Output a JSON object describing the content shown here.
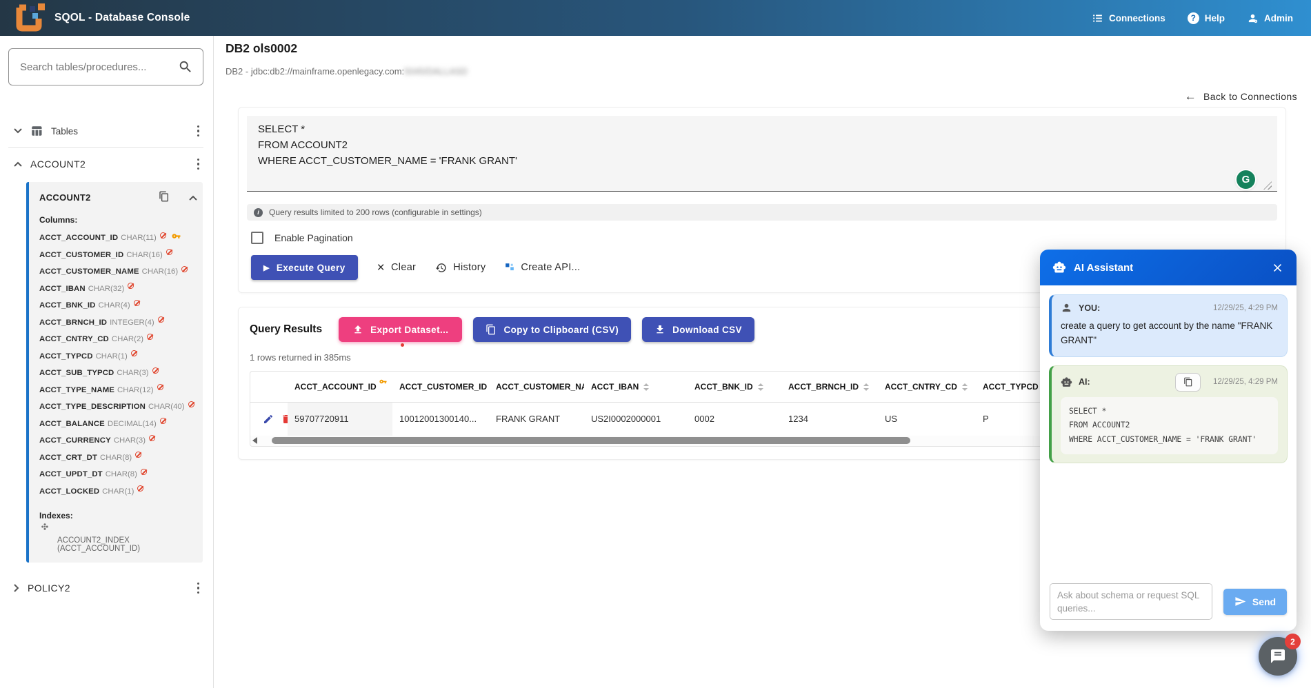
{
  "app": {
    "title": "SQOL - Database Console"
  },
  "header": {
    "connections": "Connections",
    "help": "Help",
    "admin": "Admin"
  },
  "icons": {
    "play": "▶",
    "clear": "×",
    "back_arrow": "←",
    "help": "?",
    "info": "i",
    "grammarly": "G"
  },
  "colors": {
    "header_gradient_left": "#243746",
    "header_gradient_right": "#2f8fd0",
    "accent_indigo": "#3f51b5",
    "accent_pink": "#ee3f7f",
    "assistant_blue": "#0c5fd6",
    "user_bubble": "#dceafc",
    "ai_bubble": "#edf2e2",
    "not_null_red": "#e0442c",
    "key_orange": "#f29b00",
    "send_blue": "#6aabf1",
    "sidebar_card_border": "#1a73c8"
  },
  "sidebar": {
    "search_placeholder": "Search tables/procedures...",
    "tables_label": "Tables",
    "tree": [
      {
        "label": "ACCOUNT2",
        "expanded": true
      },
      {
        "label": "POLICY2",
        "expanded": false
      }
    ],
    "table_detail": {
      "title": "ACCOUNT2",
      "columns_label": "Columns:",
      "columns": [
        {
          "name": "ACCT_ACCOUNT_ID",
          "type": "CHAR(11)",
          "no_nulls": true,
          "primary_key": true
        },
        {
          "name": "ACCT_CUSTOMER_ID",
          "type": "CHAR(16)",
          "no_nulls": true,
          "primary_key": false
        },
        {
          "name": "ACCT_CUSTOMER_NAME",
          "type": "CHAR(16)",
          "no_nulls": true,
          "primary_key": false
        },
        {
          "name": "ACCT_IBAN",
          "type": "CHAR(32)",
          "no_nulls": true,
          "primary_key": false
        },
        {
          "name": "ACCT_BNK_ID",
          "type": "CHAR(4)",
          "no_nulls": true,
          "primary_key": false
        },
        {
          "name": "ACCT_BRNCH_ID",
          "type": "INTEGER(4)",
          "no_nulls": true,
          "primary_key": false
        },
        {
          "name": "ACCT_CNTRY_CD",
          "type": "CHAR(2)",
          "no_nulls": true,
          "primary_key": false
        },
        {
          "name": "ACCT_TYPCD",
          "type": "CHAR(1)",
          "no_nulls": true,
          "primary_key": false
        },
        {
          "name": "ACCT_SUB_TYPCD",
          "type": "CHAR(3)",
          "no_nulls": true,
          "primary_key": false
        },
        {
          "name": "ACCT_TYPE_NAME",
          "type": "CHAR(12)",
          "no_nulls": true,
          "primary_key": false
        },
        {
          "name": "ACCT_TYPE_DESCRIPTION",
          "type": "CHAR(40)",
          "no_nulls": true,
          "primary_key": false
        },
        {
          "name": "ACCT_BALANCE",
          "type": "DECIMAL(14)",
          "no_nulls": true,
          "primary_key": false
        },
        {
          "name": "ACCT_CURRENCY",
          "type": "CHAR(3)",
          "no_nulls": true,
          "primary_key": false
        },
        {
          "name": "ACCT_CRT_DT",
          "type": "CHAR(8)",
          "no_nulls": true,
          "primary_key": false
        },
        {
          "name": "ACCT_UPDT_DT",
          "type": "CHAR(8)",
          "no_nulls": true,
          "primary_key": false
        },
        {
          "name": "ACCT_LOCKED",
          "type": "CHAR(1)",
          "no_nulls": true,
          "primary_key": false
        }
      ],
      "indexes_label": "Indexes:",
      "indexes": [
        "ACCOUNT2_INDEX (ACCT_ACCOUNT_ID)"
      ]
    }
  },
  "main": {
    "title": "DB2 ols0002",
    "subtitle_prefix": "DB2 - jdbc:db2://mainframe.openlegacy.com:",
    "subtitle_redacted": "5045/DALLASD",
    "back_link": "Back to Connections",
    "editor": {
      "sql": "SELECT *\nFROM ACCOUNT2\nWHERE ACCT_CUSTOMER_NAME = 'FRANK GRANT'"
    },
    "notice": "Query results limited to 200 rows (configurable in settings)",
    "pagination_label": "Enable Pagination",
    "pagination_checked": false,
    "actions": {
      "execute": "Execute Query",
      "clear": "Clear",
      "history": "History",
      "create_api": "Create API..."
    },
    "results": {
      "heading": "Query Results",
      "export": "Export Dataset...",
      "copy": "Copy to Clipboard (CSV)",
      "download": "Download CSV",
      "summary": "1 rows returned in 385ms",
      "table": {
        "headers": [
          {
            "label": "ACCT_ACCOUNT_ID",
            "key": true,
            "sortable": false
          },
          {
            "label": "ACCT_CUSTOMER_ID",
            "key": false,
            "sortable": false
          },
          {
            "label": "ACCT_CUSTOMER_NAME",
            "key": false,
            "sortable": false
          },
          {
            "label": "ACCT_IBAN",
            "key": false,
            "sortable": true
          },
          {
            "label": "ACCT_BNK_ID",
            "key": false,
            "sortable": true
          },
          {
            "label": "ACCT_BRNCH_ID",
            "key": false,
            "sortable": true
          },
          {
            "label": "ACCT_CNTRY_CD",
            "key": false,
            "sortable": true
          },
          {
            "label": "ACCT_TYPCD",
            "key": false,
            "sortable": true
          }
        ],
        "rows": [
          [
            "59707720911",
            "10012001300140...",
            "FRANK GRANT",
            "US2I0002000001",
            "0002",
            "1234",
            "US",
            "P"
          ]
        ]
      }
    }
  },
  "assistant": {
    "title": "AI Assistant",
    "messages": [
      {
        "role": "you",
        "label": "YOU:",
        "timestamp": "12/29/25, 4:29 PM",
        "text": "create a query to get account by the name \"FRANK GRANT\""
      },
      {
        "role": "ai",
        "label": "AI:",
        "timestamp": "12/29/25, 4:29 PM",
        "code": "SELECT *\nFROM ACCOUNT2\nWHERE ACCT_CUSTOMER_NAME = 'FRANK GRANT'"
      }
    ],
    "input_placeholder": "Ask about schema or request SQL queries...",
    "send_label": "Send"
  },
  "chat_fab": {
    "badge": "2"
  }
}
